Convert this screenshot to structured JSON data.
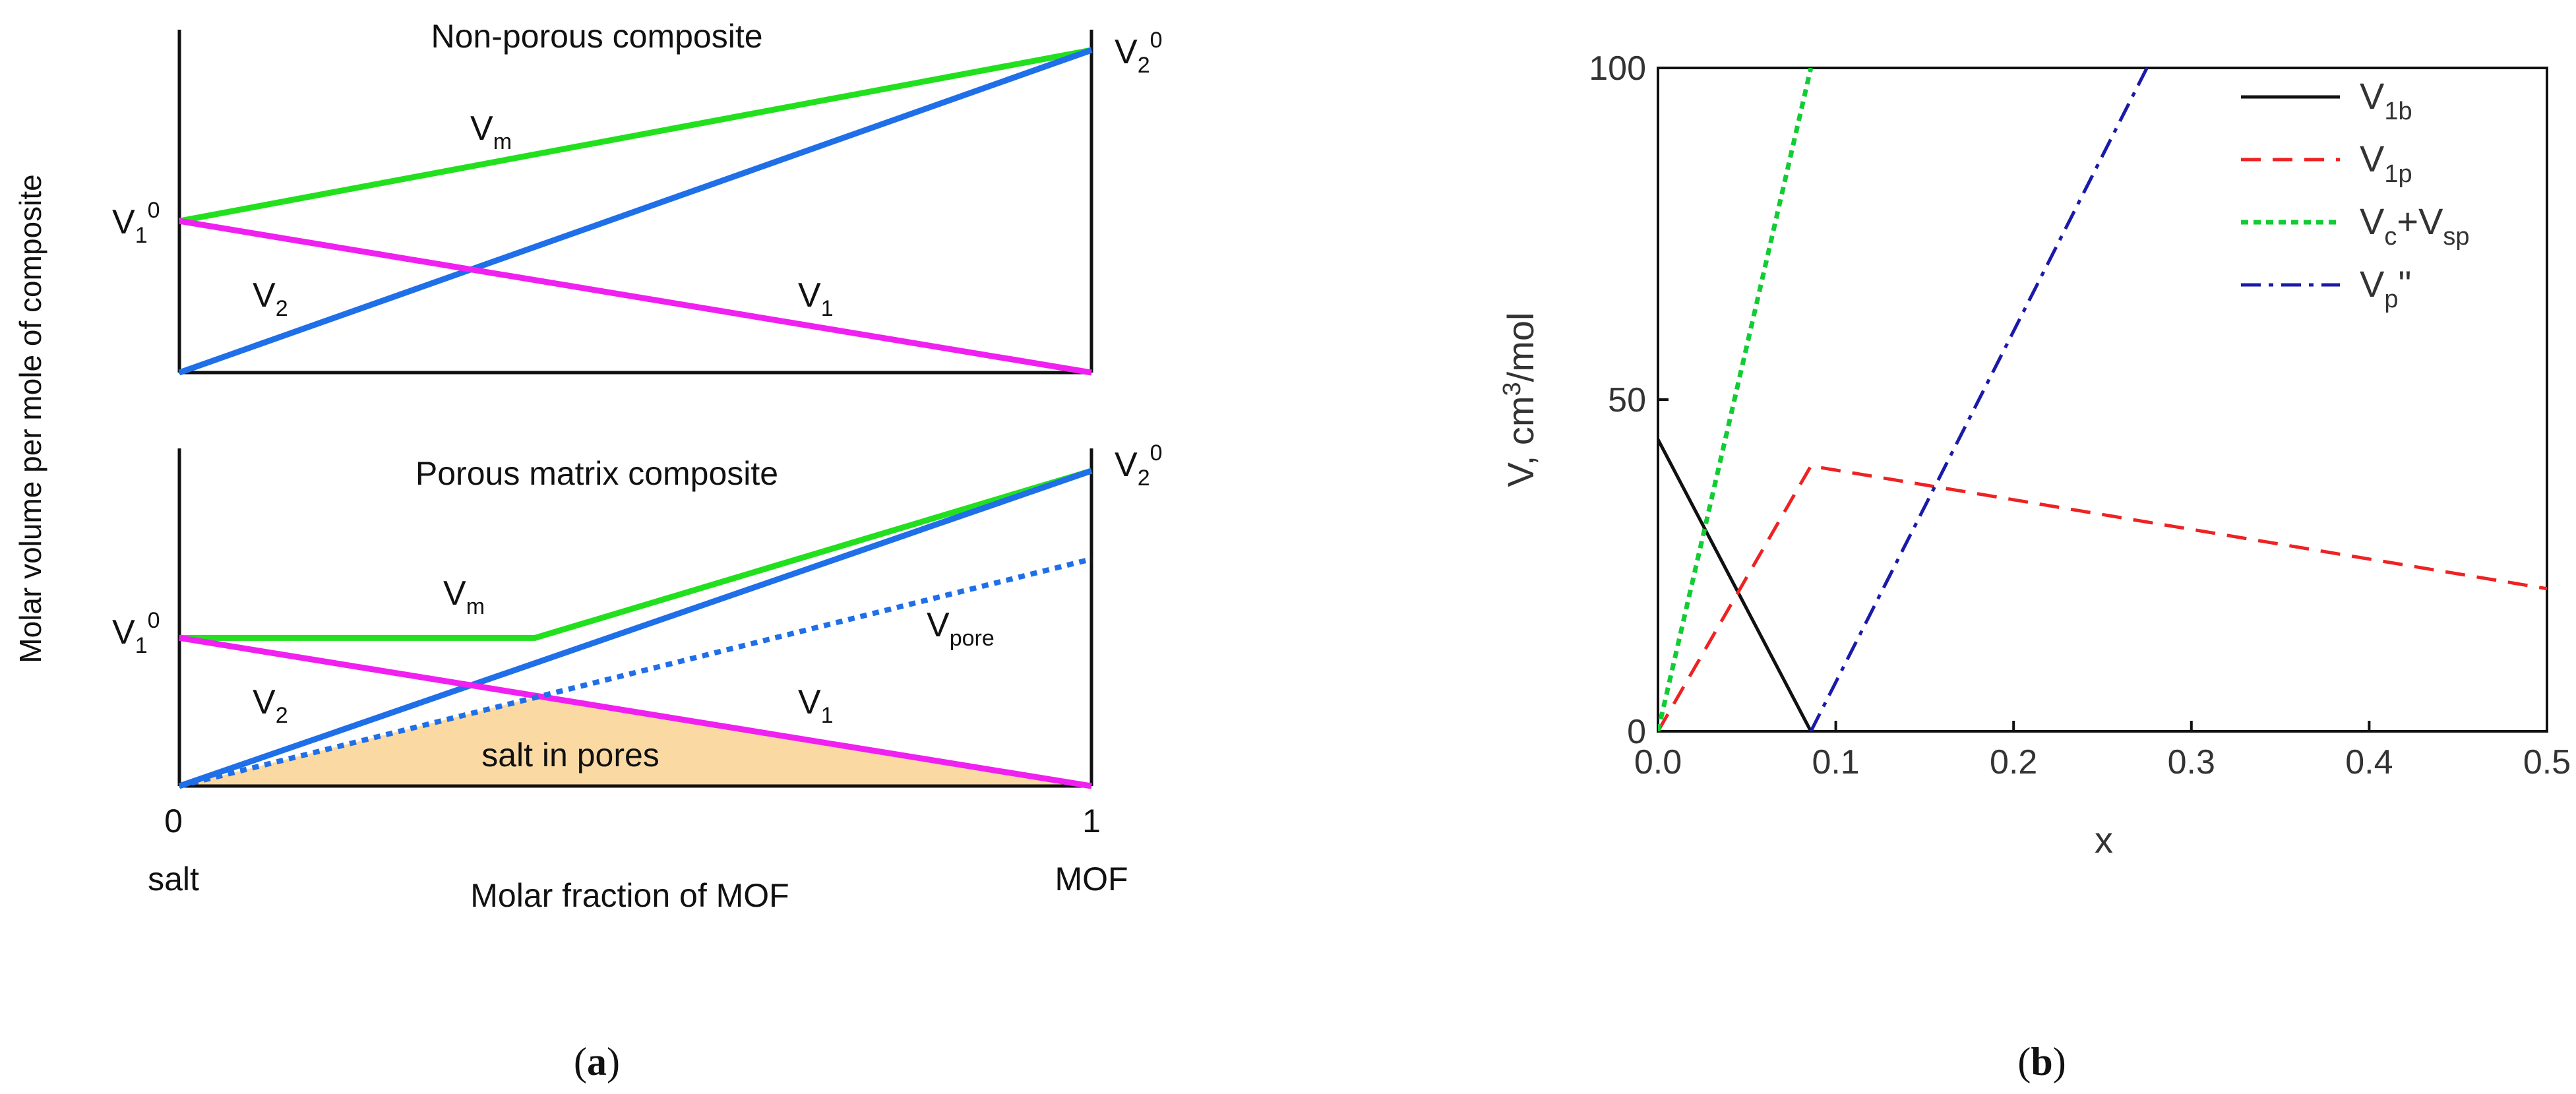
{
  "panel_a": {
    "caption_open": "(",
    "caption_letter": "a",
    "caption_close": ")",
    "y_axis_label": "Molar volume per mole of composite",
    "x_axis_label": "Molar fraction of MOF",
    "x_tick_left": "0",
    "x_tick_right": "1",
    "x_end_left": "salt",
    "x_end_right": "MOF",
    "top": {
      "title": "Non-porous composite",
      "label_V10": "V",
      "label_V10_sub": "1",
      "label_V10_sup": "0",
      "label_V20": "V",
      "label_V20_sub": "2",
      "label_V20_sup": "0",
      "label_Vm": "V",
      "label_Vm_sub": "m",
      "label_V2": "V",
      "label_V2_sub": "2",
      "label_V1": "V",
      "label_V1_sub": "1"
    },
    "bottom": {
      "title": "Porous matrix composite",
      "label_V10": "V",
      "label_V10_sub": "1",
      "label_V10_sup": "0",
      "label_V20": "V",
      "label_V20_sub": "2",
      "label_V20_sup": "0",
      "label_Vm": "V",
      "label_Vm_sub": "m",
      "label_Vpore": "V",
      "label_Vpore_sub": "pore",
      "label_V2": "V",
      "label_V2_sub": "2",
      "label_V1": "V",
      "label_V1_sub": "1",
      "fill_label": "salt in pores"
    }
  },
  "panel_b": {
    "caption_open": "(",
    "caption_letter": "b",
    "caption_close": ")"
  },
  "colors": {
    "green": "#22e01e",
    "blue": "#1f6fe8",
    "magenta": "#f020f0",
    "salt_fill": "#fbd9a3",
    "black": "#111111",
    "red_dash": "#ee2222",
    "green_dot": "#11cc33",
    "navy_dashdot": "#1a1aaa"
  },
  "chart_data": [
    {
      "type": "line",
      "title": "Non-porous composite",
      "xlabel": "Molar fraction of MOF",
      "ylabel": "Molar volume per mole of composite",
      "xlim": [
        0,
        1
      ],
      "ylim": [
        0,
        1
      ],
      "series": [
        {
          "name": "Vm",
          "x": [
            0,
            1
          ],
          "y": [
            0.47,
            1.0
          ]
        },
        {
          "name": "V2",
          "x": [
            0,
            1
          ],
          "y": [
            0,
            1.0
          ]
        },
        {
          "name": "V1",
          "x": [
            0,
            1
          ],
          "y": [
            0.47,
            0
          ]
        }
      ]
    },
    {
      "type": "line",
      "title": "Porous matrix composite",
      "xlabel": "Molar fraction of MOF",
      "ylabel": "Molar volume per mole of composite",
      "xlim": [
        0,
        1
      ],
      "ylim": [
        0,
        1
      ],
      "series": [
        {
          "name": "Vm",
          "x": [
            0,
            0.39,
            1
          ],
          "y": [
            0.47,
            0.47,
            1.0
          ]
        },
        {
          "name": "V2",
          "x": [
            0,
            1
          ],
          "y": [
            0,
            1.0
          ]
        },
        {
          "name": "V1",
          "x": [
            0,
            1
          ],
          "y": [
            0.47,
            0
          ]
        },
        {
          "name": "Vpore",
          "x": [
            0,
            1
          ],
          "y": [
            0,
            0.72
          ]
        }
      ],
      "shaded_region": {
        "name": "salt in pores",
        "x": [
          0,
          0.395,
          1
        ],
        "y": [
          0,
          0.285,
          0
        ]
      }
    },
    {
      "type": "line",
      "title": "",
      "xlabel": "x",
      "ylabel": "V, cm3/mol",
      "xlim": [
        0,
        0.5
      ],
      "ylim": [
        0,
        100
      ],
      "x_ticks": [
        "0.0",
        "0.1",
        "0.2",
        "0.3",
        "0.4",
        "0.5"
      ],
      "y_ticks": [
        "0",
        "50",
        "100"
      ],
      "legend_position": "top-right",
      "series": [
        {
          "name": "V1b",
          "style": "solid",
          "x": [
            0,
            0.086
          ],
          "y": [
            44,
            0
          ]
        },
        {
          "name": "V1p",
          "style": "dashed",
          "x": [
            0,
            0.086,
            0.5
          ],
          "y": [
            0,
            40,
            21.5
          ]
        },
        {
          "name": "Vc+Vsp",
          "style": "dotted",
          "x": [
            0,
            0.086
          ],
          "y": [
            0,
            100
          ]
        },
        {
          "name": "Vp\"",
          "style": "dash-dot",
          "x": [
            0.086,
            0.275
          ],
          "y": [
            0,
            100
          ]
        }
      ],
      "legend": [
        {
          "main": "V",
          "sub": "1b",
          "rest": "",
          "rest_sub": ""
        },
        {
          "main": "V",
          "sub": "1p",
          "rest": "",
          "rest_sub": ""
        },
        {
          "main": "V",
          "sub": "c",
          "rest": "+V",
          "rest_sub": "sp"
        },
        {
          "main": "V",
          "sub": "p",
          "rest": "\"",
          "rest_sub": ""
        }
      ]
    }
  ]
}
